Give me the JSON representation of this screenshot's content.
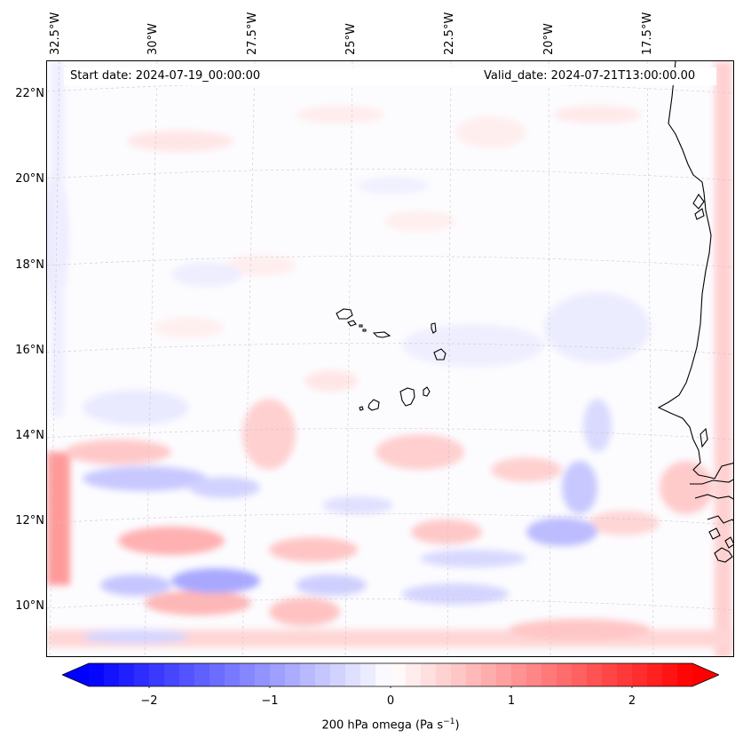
{
  "map": {
    "projection": "lambert-conformal",
    "start_date": "Start date: 2024-07-19_00:00:00",
    "valid_date": "Valid_date: 2024-07-21T13:00:00.00",
    "lon_labels": [
      "32.5°W",
      "30°W",
      "27.5°W",
      "25°W",
      "22.5°W",
      "20°W",
      "17.5°W"
    ],
    "lat_labels": [
      "22°N",
      "20°N",
      "18°N",
      "16°N",
      "14°N",
      "12°N",
      "10°N"
    ],
    "features": [
      "Cape Verde islands",
      "West African coastline"
    ]
  },
  "colorbar": {
    "ticks": [
      "−2",
      "−1",
      "0",
      "1",
      "2"
    ],
    "label": "200 hPa omega (Pa s",
    "label_sup": "−1",
    "label_end": ")",
    "cmap": "bwr",
    "min": -2.5,
    "max": 2.5,
    "extend": "both",
    "colors": {
      "negative": "#0000ff",
      "zero": "#ffffff",
      "positive": "#ff0000"
    }
  }
}
